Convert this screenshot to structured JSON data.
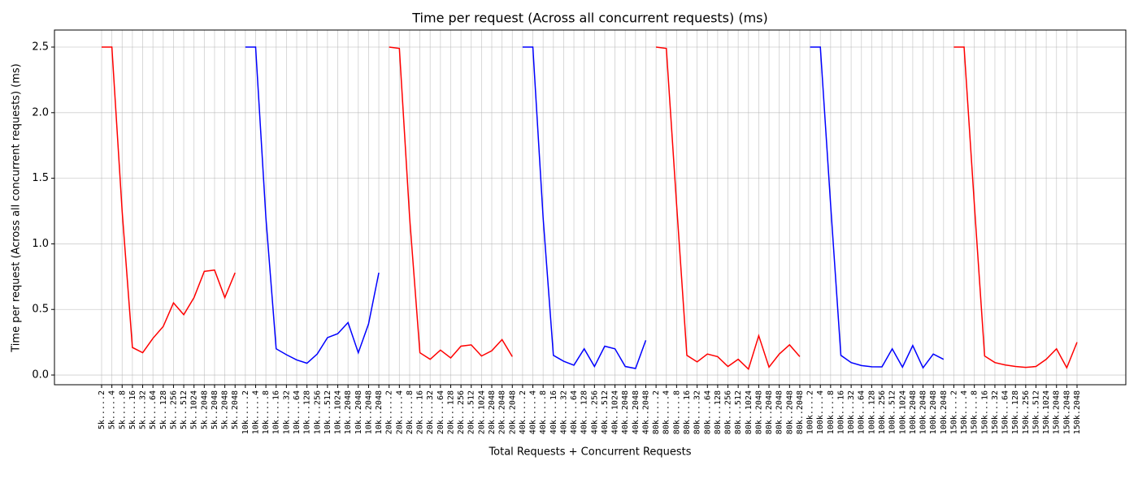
{
  "chart_data": {
    "type": "line",
    "title": "Time per request (Across all concurrent requests) (ms)",
    "xlabel": "Total Requests + Concurrent Requests",
    "ylabel": "Time per request (Across all concurrent requests) (ms)",
    "grid": true,
    "categories": [
      "5k.....2",
      "5k.....4",
      "5k.....8",
      "5k....16",
      "5k....32",
      "5k....64",
      "5k...128",
      "5k...256",
      "5k...512",
      "5k..1024",
      "5k..2048",
      "5k..2048",
      "5k..2048",
      "5k..2048",
      "10k.....2",
      "10k.....4",
      "10k.....8",
      "10k....16",
      "10k....32",
      "10k....64",
      "10k...128",
      "10k...256",
      "10k...512",
      "10k..1024",
      "10k..2048",
      "10k..2048",
      "10k..2048",
      "10k..2048",
      "20k.....2",
      "20k.....4",
      "20k.....8",
      "20k....16",
      "20k....32",
      "20k....64",
      "20k...128",
      "20k...256",
      "20k...512",
      "20k..1024",
      "20k..2048",
      "20k..2048",
      "20k..2048",
      "40k.....2",
      "40k.....4",
      "40k.....8",
      "40k....16",
      "40k....32",
      "40k....64",
      "40k...128",
      "40k...256",
      "40k...512",
      "40k..1024",
      "40k..2048",
      "40k..2048",
      "40k..2048",
      "80k.....2",
      "80k.....4",
      "80k.....8",
      "80k....16",
      "80k....32",
      "80k....64",
      "80k...128",
      "80k...256",
      "80k...512",
      "80k..1024",
      "80k..2048",
      "80k..2048",
      "80k..2048",
      "80k..2048",
      "80k..2048",
      "100k....2",
      "100k....4",
      "100k....8",
      "100k...16",
      "100k...32",
      "100k...64",
      "100k..128",
      "100k..256",
      "100k..512",
      "100k.1024",
      "100k.2048",
      "100k.2048",
      "100k.2048",
      "100k.2048",
      "150k....2",
      "150k....4",
      "150k....8",
      "150k...16",
      "150k...32",
      "150k...64",
      "150k..128",
      "150k..256",
      "150k..512",
      "150k.1024",
      "150k.2048",
      "150k.2048",
      "150k.2048"
    ],
    "series": [
      {
        "color": "#ff0000",
        "values": [
          2.5,
          2.5,
          1.25,
          0.21,
          0.17,
          0.28,
          0.37,
          0.55,
          0.46,
          0.59,
          0.79,
          0.8,
          0.59,
          0.78,
          null,
          null,
          null,
          null,
          null,
          null,
          null,
          null,
          null,
          null,
          null,
          null,
          null,
          null,
          2.5,
          2.49,
          1.2,
          0.17,
          0.12,
          0.19,
          0.13,
          0.22,
          0.23,
          0.145,
          0.185,
          0.27,
          0.14,
          null,
          null,
          null,
          null,
          null,
          null,
          null,
          null,
          null,
          null,
          null,
          null,
          null,
          2.5,
          2.49,
          1.3,
          0.15,
          0.1,
          0.16,
          0.14,
          0.065,
          0.12,
          0.045,
          0.3,
          0.06,
          0.16,
          0.23,
          0.14,
          null,
          null,
          null,
          null,
          null,
          null,
          null,
          null,
          null,
          null,
          null,
          null,
          null,
          null,
          2.5,
          2.5,
          1.3,
          0.145,
          0.095,
          0.077,
          0.065,
          0.058,
          0.065,
          0.12,
          0.2,
          0.055,
          0.25
        ]
      },
      {
        "color": "#0000ff",
        "values": [
          null,
          null,
          null,
          null,
          null,
          null,
          null,
          null,
          null,
          null,
          null,
          null,
          null,
          null,
          2.5,
          2.5,
          1.2,
          0.2,
          0.155,
          0.115,
          0.09,
          0.16,
          0.285,
          0.315,
          0.4,
          0.17,
          0.39,
          0.78,
          null,
          null,
          null,
          null,
          null,
          null,
          null,
          null,
          null,
          null,
          null,
          null,
          null,
          2.5,
          2.5,
          1.2,
          0.15,
          0.105,
          0.075,
          0.2,
          0.065,
          0.22,
          0.2,
          0.065,
          0.05,
          0.265,
          null,
          null,
          null,
          null,
          null,
          null,
          null,
          null,
          null,
          null,
          null,
          null,
          null,
          null,
          null,
          2.5,
          2.5,
          1.3,
          0.15,
          0.095,
          0.072,
          0.063,
          0.062,
          0.2,
          0.06,
          0.225,
          0.055,
          0.16,
          0.12,
          null,
          null,
          null,
          null,
          null,
          null,
          null,
          null,
          null,
          null,
          null,
          null,
          null
        ]
      }
    ],
    "ylim": [
      -0.074,
      2.63
    ],
    "yticks": [
      {
        "value": 0,
        "label": "0.0"
      },
      {
        "value": 0.5,
        "label": "0.5"
      },
      {
        "value": 1,
        "label": "1.0"
      },
      {
        "value": 1.5,
        "label": "1.5"
      },
      {
        "value": 2,
        "label": "2.0"
      },
      {
        "value": 2.5,
        "label": "2.5"
      }
    ]
  }
}
